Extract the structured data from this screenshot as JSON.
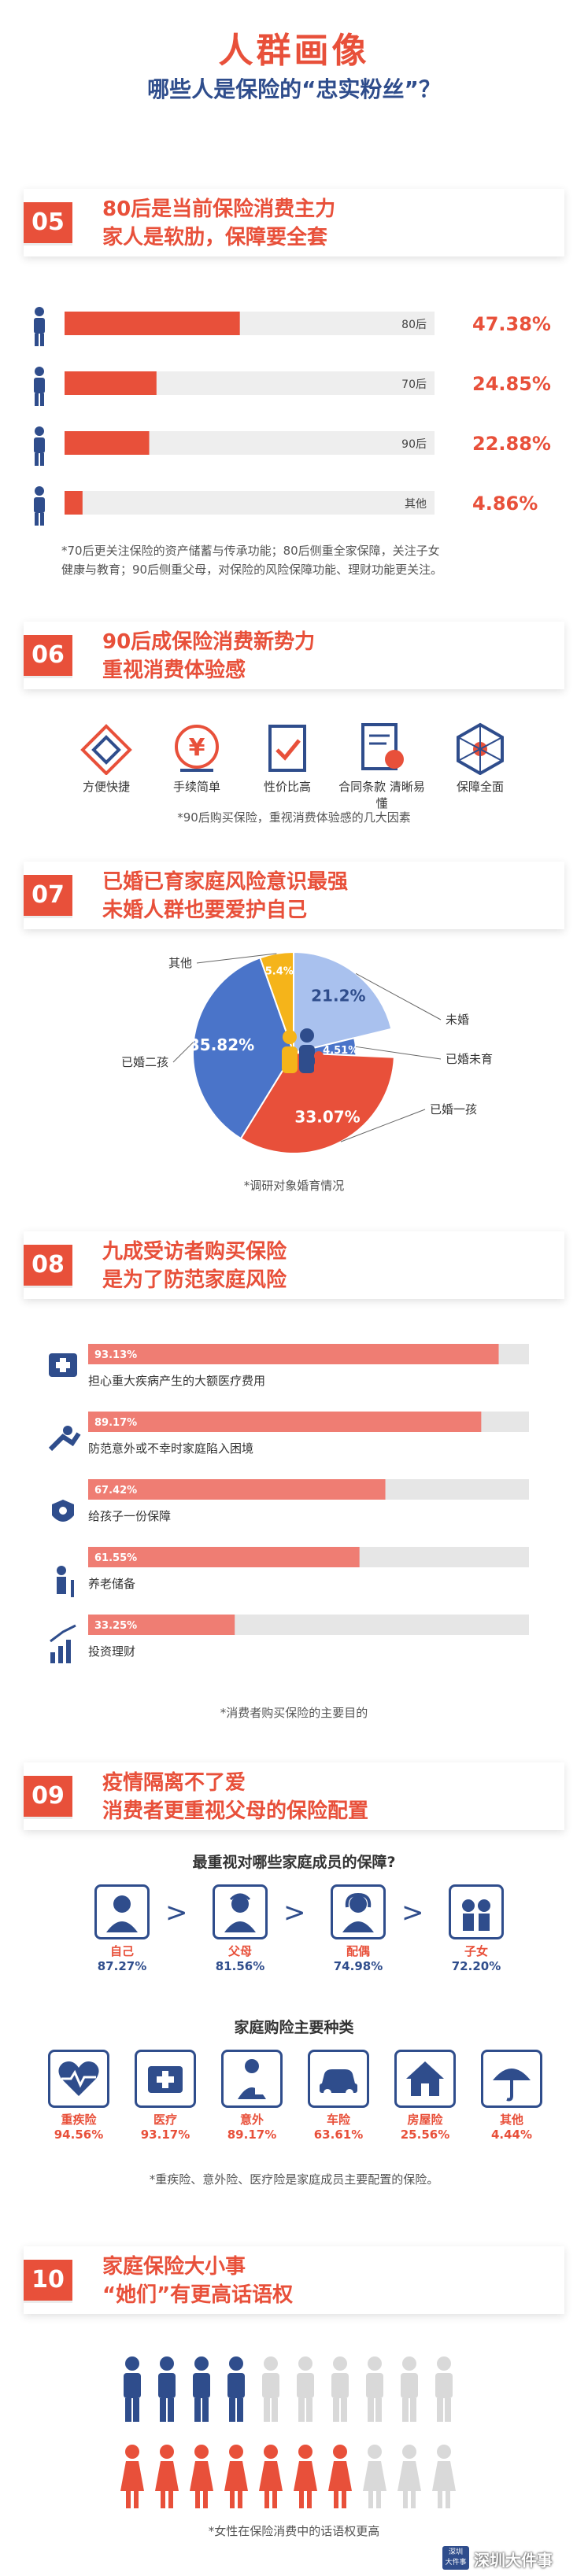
{
  "header": {
    "title": "人群画像",
    "subtitle": "哪些人是保险的“忠实粉丝”？"
  },
  "sec05": {
    "num": "05",
    "title_line1": "80后是当前保险消费主力",
    "title_line2": "家人是软肋，保障要全套",
    "note_line1": "*70后更关注保险的资产储蓄与传承功能；80后侧重全家保障，关注子女",
    "note_line2": "健康与教育；90后侧重父母，对保险的风险保障功能、理财功能更关注。"
  },
  "sec06": {
    "num": "06",
    "title_line1": "90后成保险消费新势力",
    "title_line2": "重视消费体验感",
    "items": [
      "方便快捷",
      "手续简单",
      "性价比高",
      "合同条款 清晰易懂",
      "保障全面"
    ],
    "note": "*90后购买保险，重视消费体验感的几大因素"
  },
  "sec07": {
    "num": "07",
    "title_line1": "已婚已育家庭风险意识最强",
    "title_line2": "未婚人群也要爱护自己",
    "note": "*调研对象婚育情况"
  },
  "sec08": {
    "num": "08",
    "title_line1": "九成受访者购买保险",
    "title_line2": "是为了防范家庭风险",
    "note": "*消费者购买保险的主要目的"
  },
  "sec09": {
    "num": "09",
    "title_line1": "疫情隔离不了爱",
    "title_line2": "消费者更重视父母的保险配置",
    "q1": "最重视对哪些家庭成员的保障?",
    "q2": "家庭购险主要种类",
    "note": "*重疾险、意外险、医疗险是家庭成员主要配置的保险。"
  },
  "sec10": {
    "num": "10",
    "title_line1": "家庭保险大小事",
    "title_line2": "“她们”有更高话语权",
    "note": "*女性在保险消费中的话语权更高"
  },
  "watermark": {
    "line1": "深圳",
    "line2": "大件事",
    "text": "深圳大件事"
  },
  "colors": {
    "accent": "#e8503a",
    "navy": "#2f4d8c",
    "light_blue": "#a9c1ee",
    "mid_blue": "#4a74c9",
    "yellow": "#f5b41a",
    "pink_bar": "#ef7d73"
  },
  "chart_data": [
    {
      "type": "bar",
      "orientation": "horizontal",
      "categories": [
        "80后",
        "70后",
        "90后",
        "其他"
      ],
      "values": [
        47.38,
        24.85,
        22.88,
        4.86
      ],
      "value_labels": [
        "47.38%",
        "24.85%",
        "22.88%",
        "4.86%"
      ],
      "xlim": [
        0,
        100
      ]
    },
    {
      "type": "pie",
      "labels": [
        "未婚",
        "已婚未育",
        "已婚一孩",
        "已婚二孩",
        "其他"
      ],
      "values": [
        21.2,
        4.51,
        33.07,
        35.82,
        5.4
      ],
      "value_labels": [
        "21.2%",
        "4.51%",
        "33.07%",
        "35.82%",
        "5.4%"
      ]
    },
    {
      "type": "bar",
      "orientation": "horizontal",
      "categories": [
        "担心重大疾病产生的大额医疗费用",
        "防范意外或不幸时家庭陷入困境",
        "给孩子一份保障",
        "养老储备",
        "投资理财"
      ],
      "values": [
        93.13,
        89.17,
        67.42,
        61.55,
        33.25
      ],
      "value_labels": [
        "93.13%",
        "89.17%",
        "67.42%",
        "61.55%",
        "33.25%"
      ],
      "xlim": [
        0,
        100
      ]
    },
    {
      "type": "table",
      "categories": [
        "自己",
        "父母",
        "配偶",
        "子女"
      ],
      "values": [
        87.27,
        81.56,
        74.98,
        72.2
      ],
      "value_labels": [
        "87.27%",
        "81.56%",
        "74.98%",
        "72.20%"
      ]
    },
    {
      "type": "table",
      "categories": [
        "重疾险",
        "医疗",
        "意外",
        "车险",
        "房屋险",
        "其他"
      ],
      "values": [
        94.56,
        93.17,
        89.17,
        63.61,
        25.56,
        4.44
      ],
      "value_labels": [
        "94.56%",
        "93.17%",
        "89.17%",
        "63.61%",
        "25.56%",
        "4.44%"
      ]
    },
    {
      "type": "table",
      "categories": [
        "男",
        "女"
      ],
      "values": [
        4,
        7
      ],
      "value_labels": [
        "4/10",
        "7/10"
      ]
    }
  ]
}
